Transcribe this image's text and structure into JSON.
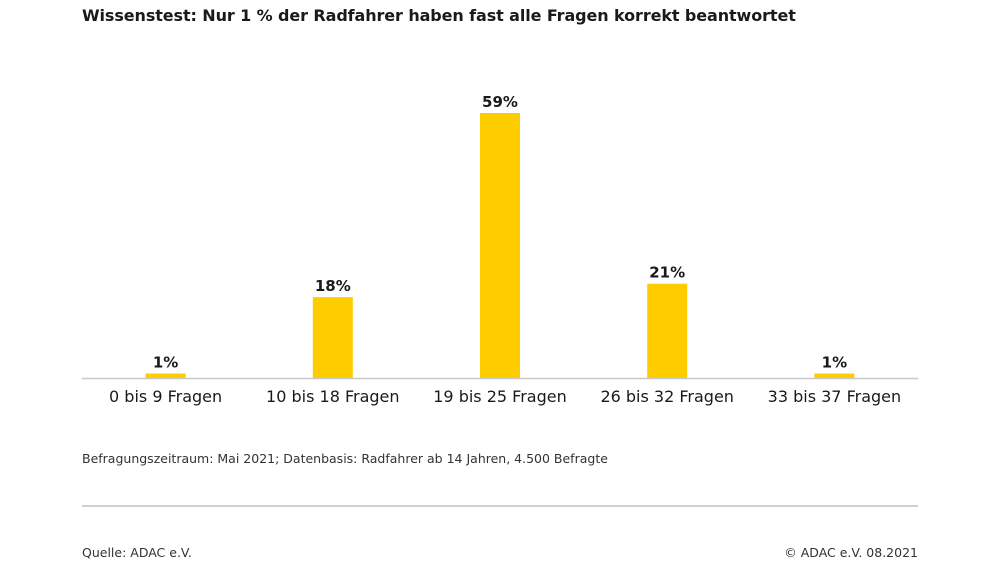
{
  "chart_data": {
    "type": "bar",
    "title": "Wissenstest: Nur 1 % der Radfahrer haben fast alle Fragen korrekt beantwortet",
    "categories": [
      "0 bis 9 Fragen",
      "10 bis 18 Fragen",
      "19 bis 25 Fragen",
      "26 bis 32 Fragen",
      "33 bis 37 Fragen"
    ],
    "values": [
      1,
      18,
      59,
      21,
      1
    ],
    "value_labels": [
      "1%",
      "18%",
      "59%",
      "21%",
      "1%"
    ],
    "xlabel": "",
    "ylabel": "",
    "ylim": [
      0,
      59
    ],
    "grid": false,
    "legend": "none",
    "colors": {
      "bar": "#FFCC00",
      "baseline": "#c8c8c8"
    }
  },
  "footer": {
    "note": "Befragungszeitraum: Mai 2021; Datenbasis: Radfahrer ab 14 Jahren, 4.500 Befragte",
    "source": "Quelle: ADAC e.V.",
    "copyright": "© ADAC e.V. 08.2021"
  }
}
